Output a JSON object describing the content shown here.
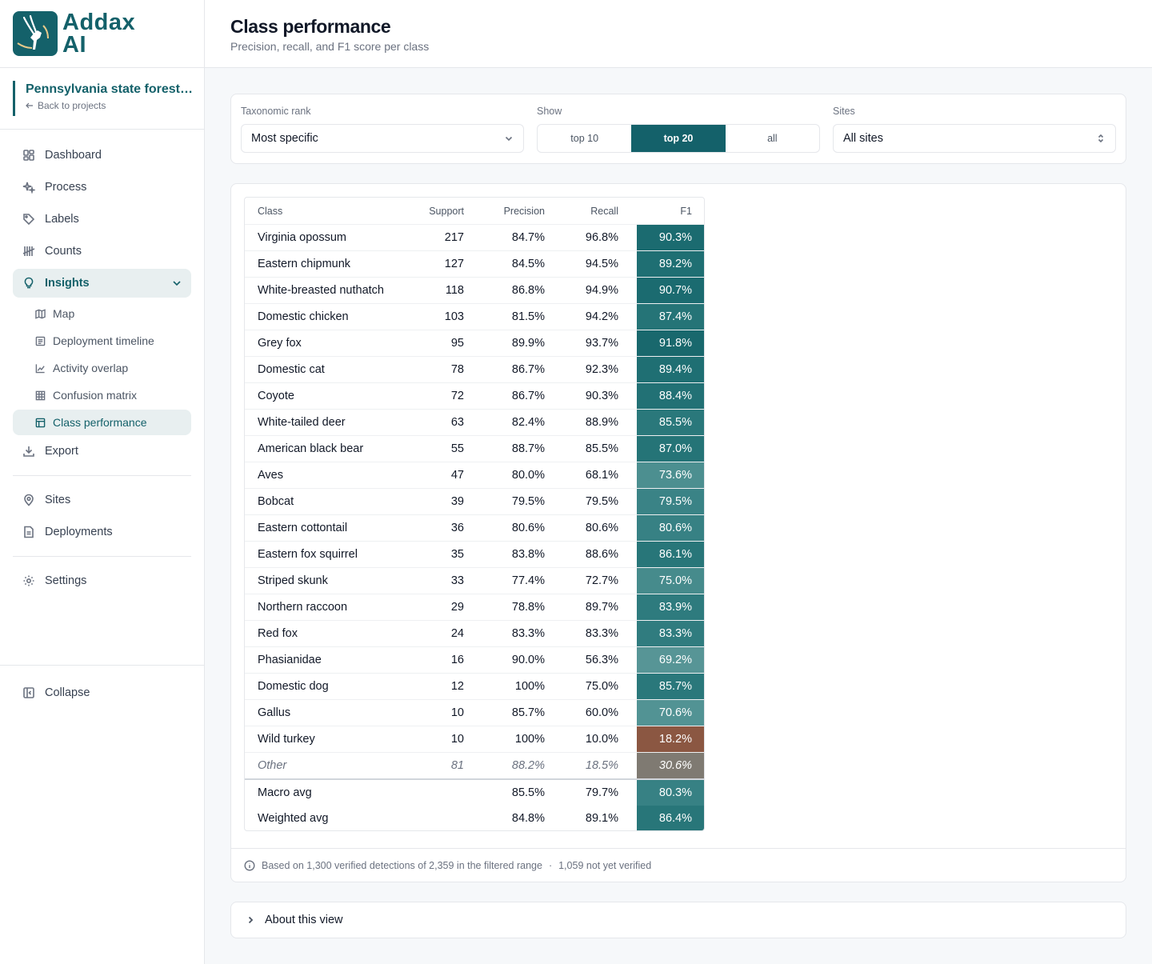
{
  "brand": {
    "name_line1": "Addax",
    "name_line2": "AI",
    "color": "#14616a"
  },
  "project": {
    "name": "Pennsylvania state forest cameras",
    "back_label": "Back to projects"
  },
  "nav": {
    "items": [
      {
        "label": "Dashboard",
        "icon": "dashboard-icon"
      },
      {
        "label": "Process",
        "icon": "sparkles-icon"
      },
      {
        "label": "Labels",
        "icon": "tag-icon"
      },
      {
        "label": "Counts",
        "icon": "tally-icon"
      },
      {
        "label": "Insights",
        "icon": "lightbulb-icon",
        "expanded": true
      }
    ],
    "sub_items": [
      {
        "label": "Map",
        "icon": "map-icon"
      },
      {
        "label": "Deployment timeline",
        "icon": "list-icon"
      },
      {
        "label": "Activity overlap",
        "icon": "line-chart-icon"
      },
      {
        "label": "Confusion matrix",
        "icon": "grid-icon"
      },
      {
        "label": "Class performance",
        "icon": "table-icon",
        "active": true
      }
    ],
    "export": {
      "label": "Export",
      "icon": "download-icon"
    },
    "group2": [
      {
        "label": "Sites",
        "icon": "pin-icon"
      },
      {
        "label": "Deployments",
        "icon": "file-icon"
      }
    ],
    "settings": {
      "label": "Settings",
      "icon": "gear-icon"
    },
    "collapse": {
      "label": "Collapse",
      "icon": "sidebar-collapse-icon"
    }
  },
  "header": {
    "title": "Class performance",
    "subtitle": "Precision, recall, and F1 score per class"
  },
  "filters": {
    "rank": {
      "label": "Taxonomic rank",
      "value": "Most specific"
    },
    "show": {
      "label": "Show",
      "options": [
        "top 10",
        "top 20",
        "all"
      ],
      "selected": "top 20"
    },
    "sites": {
      "label": "Sites",
      "value": "All sites"
    }
  },
  "table": {
    "columns": [
      "Class",
      "Support",
      "Precision",
      "Recall",
      "F1"
    ],
    "rows": [
      {
        "class": "Virginia opossum",
        "support": "217",
        "precision": "84.7%",
        "recall": "96.8%",
        "f1": "90.3%",
        "color": "#1b6b70"
      },
      {
        "class": "Eastern chipmunk",
        "support": "127",
        "precision": "84.5%",
        "recall": "94.5%",
        "f1": "89.2%",
        "color": "#1f6f73"
      },
      {
        "class": "White-breasted nuthatch",
        "support": "118",
        "precision": "86.8%",
        "recall": "94.9%",
        "f1": "90.7%",
        "color": "#1b6b70"
      },
      {
        "class": "Domestic chicken",
        "support": "103",
        "precision": "81.5%",
        "recall": "94.2%",
        "f1": "87.4%",
        "color": "#257477"
      },
      {
        "class": "Grey fox",
        "support": "95",
        "precision": "89.9%",
        "recall": "93.7%",
        "f1": "91.8%",
        "color": "#19686d"
      },
      {
        "class": "Domestic cat",
        "support": "78",
        "precision": "86.7%",
        "recall": "92.3%",
        "f1": "89.4%",
        "color": "#1f6f73"
      },
      {
        "class": "Coyote",
        "support": "72",
        "precision": "86.7%",
        "recall": "90.3%",
        "f1": "88.4%",
        "color": "#227175"
      },
      {
        "class": "White-tailed deer",
        "support": "63",
        "precision": "82.4%",
        "recall": "88.9%",
        "f1": "85.5%",
        "color": "#2a787b"
      },
      {
        "class": "American black bear",
        "support": "55",
        "precision": "88.7%",
        "recall": "85.5%",
        "f1": "87.0%",
        "color": "#257477"
      },
      {
        "class": "Aves",
        "support": "47",
        "precision": "80.0%",
        "recall": "68.1%",
        "f1": "73.6%",
        "color": "#4c8f90"
      },
      {
        "class": "Bobcat",
        "support": "39",
        "precision": "79.5%",
        "recall": "79.5%",
        "f1": "79.5%",
        "color": "#3a8386"
      },
      {
        "class": "Eastern cottontail",
        "support": "36",
        "precision": "80.6%",
        "recall": "80.6%",
        "f1": "80.6%",
        "color": "#378184"
      },
      {
        "class": "Eastern fox squirrel",
        "support": "35",
        "precision": "83.8%",
        "recall": "88.6%",
        "f1": "86.1%",
        "color": "#287679"
      },
      {
        "class": "Striped skunk",
        "support": "33",
        "precision": "77.4%",
        "recall": "72.7%",
        "f1": "75.0%",
        "color": "#468b8c"
      },
      {
        "class": "Northern raccoon",
        "support": "29",
        "precision": "78.8%",
        "recall": "89.7%",
        "f1": "83.9%",
        "color": "#2e7b7e"
      },
      {
        "class": "Red fox",
        "support": "24",
        "precision": "83.3%",
        "recall": "83.3%",
        "f1": "83.3%",
        "color": "#307c7f"
      },
      {
        "class": "Phasianidae",
        "support": "16",
        "precision": "90.0%",
        "recall": "56.3%",
        "f1": "69.2%",
        "color": "#579596"
      },
      {
        "class": "Domestic dog",
        "support": "12",
        "precision": "100%",
        "recall": "75.0%",
        "f1": "85.7%",
        "color": "#2a787b"
      },
      {
        "class": "Gallus",
        "support": "10",
        "precision": "85.7%",
        "recall": "60.0%",
        "f1": "70.6%",
        "color": "#529394"
      },
      {
        "class": "Wild turkey",
        "support": "10",
        "precision": "100%",
        "recall": "10.0%",
        "f1": "18.2%",
        "color": "#8b5742"
      }
    ],
    "other": {
      "class": "Other",
      "support": "81",
      "precision": "88.2%",
      "recall": "18.5%",
      "f1": "30.6%",
      "color": "#7f7a72"
    },
    "macro": {
      "class": "Macro avg",
      "precision": "85.5%",
      "recall": "79.7%",
      "f1": "80.3%",
      "color": "#378184"
    },
    "weighted": {
      "class": "Weighted avg",
      "precision": "84.8%",
      "recall": "89.1%",
      "f1": "86.4%",
      "color": "#287679"
    }
  },
  "footnote": {
    "text": "Based on 1,300 verified detections of 2,359 in the filtered range",
    "separator": "·",
    "extra": "1,059 not yet verified"
  },
  "about": {
    "label": "About this view"
  }
}
